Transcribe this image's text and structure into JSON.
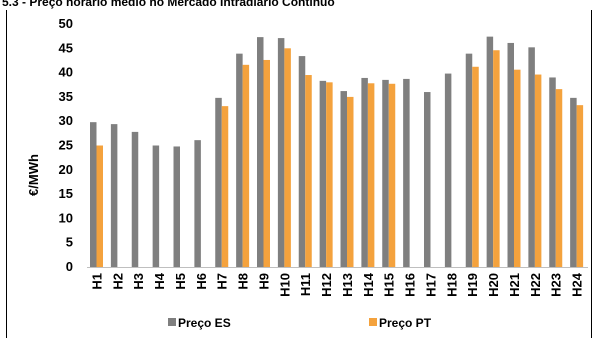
{
  "title": "5.3 - Preço horário médio no Mercado Intradiário Contínuo",
  "chart_data": {
    "type": "bar",
    "title": "5.3 - Preço horário médio no Mercado Intradiário Contínuo",
    "xlabel": "",
    "ylabel": "€/MWh",
    "ylim": [
      0,
      50
    ],
    "yticks": [
      0,
      5,
      10,
      15,
      20,
      25,
      30,
      35,
      40,
      45,
      50
    ],
    "grid": false,
    "legend_position": "bottom",
    "categories": [
      "H1",
      "H2",
      "H3",
      "H4",
      "H5",
      "H6",
      "H7",
      "H8",
      "H9",
      "H10",
      "H11",
      "H12",
      "H13",
      "H14",
      "H15",
      "H16",
      "H17",
      "H18",
      "H19",
      "H20",
      "H21",
      "H22",
      "H23",
      "H24"
    ],
    "series": [
      {
        "name": "Preço ES",
        "color": "#7f7f7f",
        "values": [
          29.8,
          29.4,
          27.8,
          25.0,
          24.8,
          26.1,
          34.8,
          43.9,
          47.3,
          47.1,
          43.4,
          38.3,
          36.2,
          38.9,
          38.5,
          38.7,
          36.0,
          39.8,
          43.9,
          47.4,
          46.1,
          45.2,
          39.0,
          34.8
        ]
      },
      {
        "name": "Preço PT",
        "color": "#f4a23d",
        "values": [
          25.0,
          null,
          null,
          null,
          null,
          null,
          33.1,
          41.6,
          42.6,
          45.0,
          39.5,
          38.0,
          35.0,
          37.8,
          37.7,
          null,
          null,
          null,
          41.2,
          44.6,
          40.6,
          39.6,
          36.6,
          33.3
        ]
      }
    ]
  }
}
